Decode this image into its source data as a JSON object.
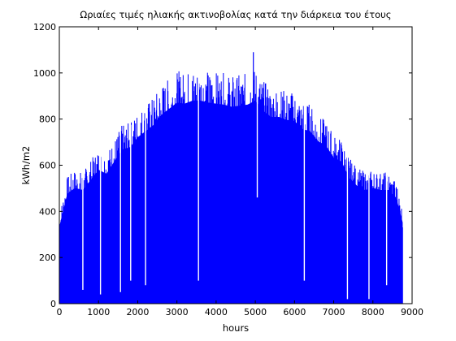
{
  "chart_data": {
    "type": "area",
    "title": "Ωριαίες τιμές ηλιακής ακτινοβολίας κατά την διάρκεια του έτους",
    "xlabel": "hours",
    "ylabel": "kWh/m2",
    "xlim": [
      0,
      9000
    ],
    "ylim": [
      0,
      1200
    ],
    "xticks": [
      0,
      1000,
      2000,
      3000,
      4000,
      5000,
      6000,
      7000,
      8000,
      9000
    ],
    "yticks": [
      0,
      200,
      400,
      600,
      800,
      1000,
      1200
    ],
    "grid": false,
    "legend": "none",
    "series": [
      {
        "color": "#0000ff",
        "envelope": {
          "x": [
            0,
            200,
            400,
            600,
            800,
            1000,
            1200,
            1400,
            1600,
            1800,
            2000,
            2200,
            2400,
            2600,
            2800,
            3000,
            3200,
            3400,
            3600,
            3800,
            4000,
            4200,
            4400,
            4600,
            4800,
            5000,
            5200,
            5400,
            5600,
            5800,
            6000,
            6200,
            6400,
            6600,
            6800,
            7000,
            7200,
            7400,
            7600,
            7800,
            8000,
            8200,
            8400,
            8600,
            8760
          ],
          "y": [
            380,
            540,
            570,
            560,
            610,
            660,
            640,
            700,
            760,
            770,
            820,
            850,
            880,
            930,
            960,
            990,
            985,
            1000,
            1000,
            990,
            985,
            980,
            970,
            975,
            980,
            1000,
            950,
            920,
            920,
            905,
            900,
            860,
            850,
            800,
            780,
            720,
            700,
            620,
            580,
            560,
            570,
            560,
            560,
            520,
            400
          ]
        },
        "dips": [
          {
            "x": 600,
            "y": 60
          },
          {
            "x": 1050,
            "y": 40
          },
          {
            "x": 1560,
            "y": 50
          },
          {
            "x": 1820,
            "y": 100
          },
          {
            "x": 2200,
            "y": 80
          },
          {
            "x": 3550,
            "y": 100
          },
          {
            "x": 5050,
            "y": 460
          },
          {
            "x": 6250,
            "y": 100
          },
          {
            "x": 7350,
            "y": 20
          },
          {
            "x": 7900,
            "y": 20
          },
          {
            "x": 8350,
            "y": 80
          }
        ],
        "peak": {
          "x": 4950,
          "y": 1090
        }
      }
    ]
  }
}
